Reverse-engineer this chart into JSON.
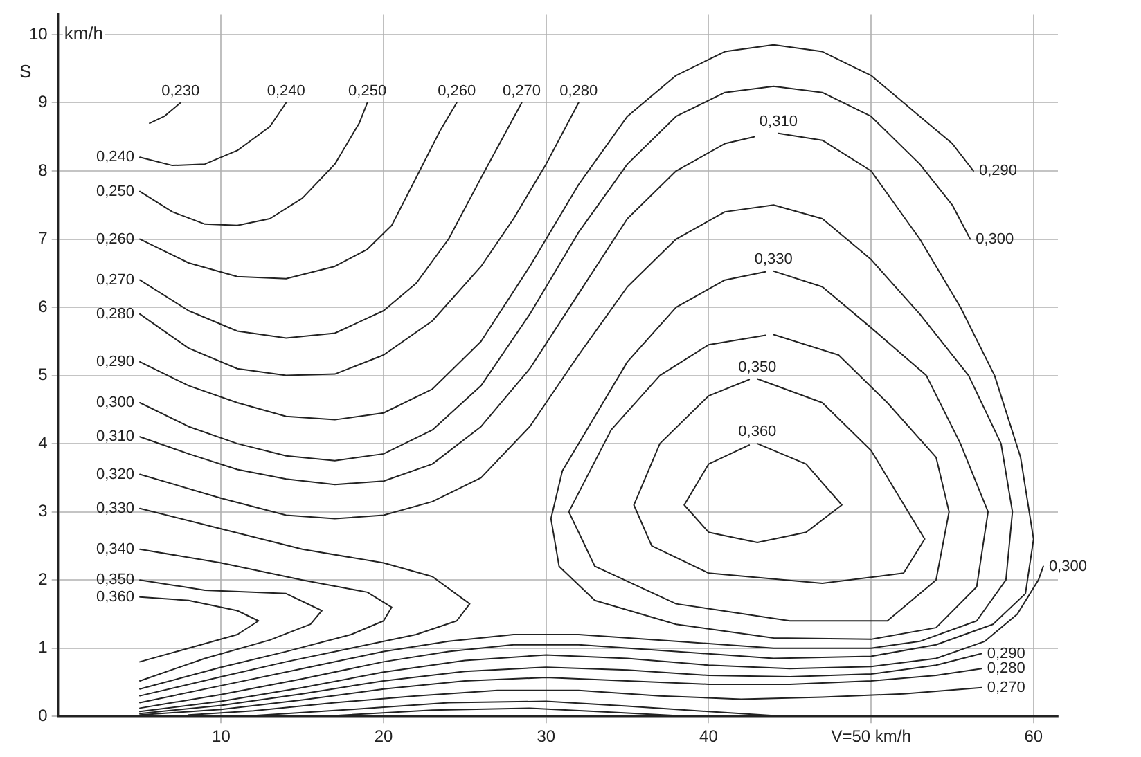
{
  "chart_data": {
    "type": "line",
    "ylabel": "S",
    "annotations": [
      "km/h"
    ],
    "xlim": [
      0,
      61.5
    ],
    "ylim": [
      0,
      10.3
    ],
    "xticks": [
      10,
      20,
      30,
      40,
      {
        "value": 50,
        "label": "V=50 km/h"
      },
      60
    ],
    "yticks": [
      0,
      1,
      2,
      3,
      4,
      5,
      6,
      7,
      8,
      9,
      10
    ],
    "grid": true,
    "marker": "none",
    "line_style": "solid",
    "series": [
      {
        "name": "0,230",
        "color": "#222222",
        "x": [
          7.5,
          6.5,
          5.6
        ],
        "values": [
          9.0,
          8.8,
          8.7
        ]
      },
      {
        "name": "0,240",
        "color": "#222222",
        "x": [
          5,
          7,
          9,
          11,
          13,
          14
        ],
        "values": [
          8.2,
          8.08,
          8.1,
          8.3,
          8.65,
          9.0
        ]
      },
      {
        "name": "0,250",
        "color": "#222222",
        "x": [
          5,
          7,
          9,
          11,
          13,
          15,
          17,
          18.5,
          19
        ],
        "values": [
          7.7,
          7.4,
          7.22,
          7.2,
          7.3,
          7.6,
          8.1,
          8.7,
          9.0
        ]
      },
      {
        "name": "0,260",
        "color": "#222222",
        "x": [
          5,
          8,
          11,
          14,
          17,
          19,
          20.5,
          22,
          23.5,
          24.5
        ],
        "values": [
          7.0,
          6.65,
          6.45,
          6.42,
          6.6,
          6.85,
          7.2,
          7.9,
          8.6,
          9.0
        ]
      },
      {
        "name": "0,270",
        "color": "#222222",
        "x": [
          5,
          8,
          11,
          14,
          17,
          20,
          22,
          24,
          26,
          28.5
        ],
        "values": [
          6.4,
          5.95,
          5.65,
          5.55,
          5.62,
          5.95,
          6.35,
          7.0,
          7.9,
          9.0
        ]
      },
      {
        "name": "0,280",
        "color": "#222222",
        "x": [
          5,
          8,
          11,
          14,
          17,
          20,
          23,
          26,
          28,
          30,
          32
        ],
        "values": [
          5.9,
          5.4,
          5.1,
          5.0,
          5.02,
          5.3,
          5.8,
          6.6,
          7.3,
          8.1,
          9.0
        ]
      },
      {
        "name": "0,290",
        "color": "#222222",
        "x": [
          5,
          8,
          11,
          14,
          17,
          20,
          23,
          26,
          29,
          32,
          35,
          38,
          41,
          44,
          47,
          50,
          53,
          55,
          56.3
        ],
        "values": [
          5.2,
          4.85,
          4.6,
          4.4,
          4.35,
          4.45,
          4.8,
          5.5,
          6.6,
          7.8,
          8.8,
          9.4,
          9.75,
          9.85,
          9.75,
          9.4,
          8.8,
          8.4,
          8.0
        ]
      },
      {
        "name": "0,300",
        "color": "#222222",
        "x": [
          5,
          8,
          11,
          14,
          17,
          20,
          23,
          26,
          29,
          32,
          35,
          38,
          41,
          44,
          47,
          50,
          53,
          55,
          56.1
        ],
        "values": [
          4.6,
          4.25,
          4.0,
          3.82,
          3.75,
          3.85,
          4.2,
          4.85,
          5.9,
          7.1,
          8.1,
          8.8,
          9.15,
          9.24,
          9.15,
          8.8,
          8.1,
          7.5,
          7.0
        ]
      },
      {
        "name": "0,310",
        "color": "#222222",
        "x": [
          5,
          8,
          11,
          14,
          17,
          20,
          23,
          26,
          29,
          32,
          35,
          38,
          41,
          42.8
        ],
        "values": [
          4.1,
          3.85,
          3.62,
          3.48,
          3.4,
          3.45,
          3.7,
          4.25,
          5.1,
          6.2,
          7.3,
          8.0,
          8.4,
          8.5
        ]
      },
      {
        "name": "0,310",
        "color": "#222222",
        "x": [
          44.3,
          47,
          50,
          53,
          55.5,
          57.6,
          59.2,
          60,
          59.5,
          57.5,
          54,
          50,
          44,
          38,
          32,
          28,
          24,
          20,
          15,
          10,
          5
        ],
        "values": [
          8.55,
          8.45,
          8.0,
          7.0,
          6.0,
          5.0,
          3.8,
          2.6,
          1.8,
          1.35,
          1.05,
          0.88,
          0.85,
          0.95,
          1.05,
          1.05,
          0.95,
          0.8,
          0.55,
          0.32,
          0.12
        ]
      },
      {
        "name": "0,320",
        "color": "#222222",
        "x": [
          5,
          10,
          14,
          17,
          20,
          23,
          26,
          29,
          32,
          35,
          38,
          41,
          44,
          47,
          50,
          53,
          56,
          58,
          58.7,
          58.3,
          56.5,
          53,
          50,
          44,
          38,
          32,
          28,
          24,
          20,
          15,
          10,
          5
        ],
        "values": [
          3.55,
          3.2,
          2.95,
          2.9,
          2.95,
          3.15,
          3.5,
          4.25,
          5.3,
          6.3,
          7.0,
          7.4,
          7.5,
          7.3,
          6.7,
          5.9,
          5.0,
          4.0,
          3.0,
          2.0,
          1.4,
          1.1,
          1.0,
          1.0,
          1.1,
          1.2,
          1.2,
          1.1,
          0.95,
          0.7,
          0.45,
          0.2
        ]
      },
      {
        "name": "0,330",
        "color": "#222222",
        "x": [
          5,
          10,
          15,
          20,
          23,
          25.3,
          24.5,
          22,
          18,
          14,
          10,
          5
        ],
        "values": [
          3.05,
          2.75,
          2.45,
          2.25,
          2.05,
          1.65,
          1.4,
          1.2,
          1.0,
          0.8,
          0.58,
          0.3
        ]
      },
      {
        "name": "0,330",
        "color": "#222222",
        "x": [
          44,
          47,
          50,
          53.4,
          55.5,
          57.2,
          56.5,
          54,
          50,
          44,
          38,
          33,
          30.8,
          30.3,
          31,
          32.5,
          35,
          38,
          41,
          43.5
        ],
        "values": [
          6.53,
          6.3,
          5.7,
          5.0,
          4.0,
          3.0,
          1.9,
          1.3,
          1.13,
          1.15,
          1.35,
          1.7,
          2.2,
          2.9,
          3.6,
          4.2,
          5.2,
          6.0,
          6.4,
          6.52
        ]
      },
      {
        "name": "0,340",
        "color": "#222222",
        "x": [
          5,
          10,
          15,
          19,
          20.5,
          20,
          18,
          14,
          10,
          5
        ],
        "values": [
          2.45,
          2.25,
          2.0,
          1.82,
          1.6,
          1.4,
          1.2,
          0.95,
          0.72,
          0.4
        ]
      },
      {
        "color": "#222222",
        "x": [
          44,
          48,
          51,
          54,
          54.8,
          54,
          51,
          45,
          38,
          33,
          31.4,
          34,
          37,
          40,
          43.5
        ],
        "values": [
          5.6,
          5.3,
          4.6,
          3.8,
          3.0,
          2.0,
          1.4,
          1.4,
          1.65,
          2.2,
          3.0,
          4.2,
          5.0,
          5.45,
          5.59
        ]
      },
      {
        "name": "0,350",
        "color": "#222222",
        "x": [
          5,
          9,
          14,
          16.2,
          15.5,
          13,
          9,
          5
        ],
        "values": [
          2.0,
          1.85,
          1.8,
          1.55,
          1.35,
          1.12,
          0.85,
          0.52
        ]
      },
      {
        "name": "0,350",
        "color": "#222222",
        "x": [
          43,
          47,
          50,
          53.3,
          52,
          47,
          40,
          36.5,
          35.4,
          37,
          40,
          42.5
        ],
        "values": [
          4.95,
          4.6,
          3.9,
          2.6,
          2.1,
          1.95,
          2.1,
          2.5,
          3.1,
          4.0,
          4.7,
          4.94
        ]
      },
      {
        "name": "0,360",
        "color": "#222222",
        "x": [
          5,
          8,
          11,
          12.3,
          11,
          8,
          5
        ],
        "values": [
          1.75,
          1.7,
          1.55,
          1.4,
          1.2,
          1.0,
          0.8
        ]
      },
      {
        "name": "0,360",
        "color": "#222222",
        "x": [
          43,
          46,
          48.2,
          46,
          43,
          40,
          38.5,
          40,
          42.5
        ],
        "values": [
          4.0,
          3.7,
          3.1,
          2.7,
          2.55,
          2.7,
          3.1,
          3.7,
          3.98
        ]
      },
      {
        "name": "0,300",
        "color": "#222222",
        "x": [
          60.6,
          60.3,
          59,
          57,
          54,
          50,
          45,
          40,
          35,
          30,
          25,
          20,
          15,
          10,
          5
        ],
        "values": [
          2.2,
          2.0,
          1.5,
          1.1,
          0.85,
          0.73,
          0.7,
          0.75,
          0.85,
          0.9,
          0.82,
          0.65,
          0.42,
          0.22,
          0.07
        ]
      },
      {
        "name": "0,290",
        "color": "#222222",
        "x": [
          56.8,
          54,
          50,
          45,
          40,
          35,
          30,
          25,
          20,
          15,
          10,
          5
        ],
        "values": [
          0.92,
          0.75,
          0.62,
          0.58,
          0.6,
          0.68,
          0.72,
          0.66,
          0.52,
          0.33,
          0.16,
          0.04
        ]
      },
      {
        "name": "0,280",
        "color": "#222222",
        "x": [
          56.8,
          54,
          50,
          45,
          40,
          35,
          30,
          25,
          20,
          15,
          10,
          5
        ],
        "values": [
          0.7,
          0.6,
          0.52,
          0.47,
          0.47,
          0.52,
          0.57,
          0.52,
          0.4,
          0.24,
          0.1,
          0.02
        ]
      },
      {
        "name": "0,270",
        "color": "#222222",
        "x": [
          56.8,
          52,
          47,
          42,
          37,
          32,
          27,
          22,
          17,
          12,
          8
        ],
        "values": [
          0.42,
          0.33,
          0.28,
          0.25,
          0.3,
          0.38,
          0.38,
          0.3,
          0.2,
          0.08,
          0.02
        ]
      },
      {
        "color": "#222222",
        "x": [
          12,
          18,
          24,
          30,
          35,
          40,
          44
        ],
        "values": [
          0.01,
          0.1,
          0.2,
          0.22,
          0.15,
          0.07,
          0.01
        ]
      },
      {
        "color": "#222222",
        "x": [
          17,
          23,
          29,
          34,
          38
        ],
        "values": [
          0.01,
          0.09,
          0.12,
          0.06,
          0.01
        ]
      }
    ]
  }
}
